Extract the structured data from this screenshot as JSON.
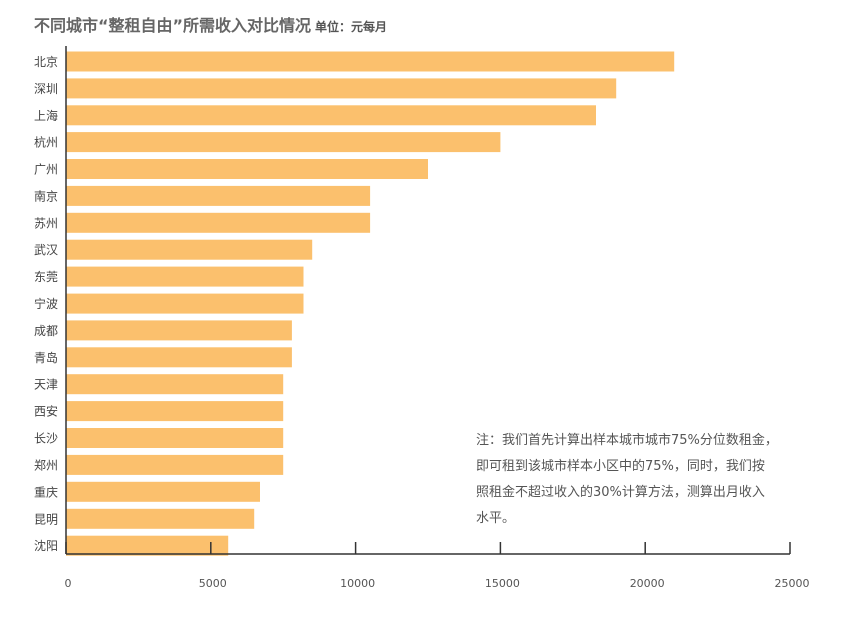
{
  "chart_data": {
    "type": "bar",
    "orientation": "horizontal",
    "title": "不同城市“整租自由”所需收入对比情况",
    "unit": "单位：元每月",
    "categories": [
      "北京",
      "深圳",
      "上海",
      "杭州",
      "广州",
      "南京",
      "苏州",
      "武汉",
      "东莞",
      "宁波",
      "成都",
      "青岛",
      "天津",
      "西安",
      "长沙",
      "郑州",
      "重庆",
      "昆明",
      "沈阳"
    ],
    "values": [
      21000,
      19000,
      18300,
      15000,
      12500,
      10500,
      10500,
      8500,
      8200,
      8200,
      7800,
      7800,
      7500,
      7500,
      7500,
      7500,
      6700,
      6500,
      5600
    ],
    "xlim": [
      0,
      25000
    ],
    "xticks": [
      "0",
      "5000",
      "10000",
      "15000",
      "20000",
      "25000"
    ],
    "bar_color": "#fbc06d",
    "axis_color": "#333333",
    "note": [
      "注：我们首先计算出样本城市城市75%分位数租金，",
      "即可租到该城市样本小区中的75%，同时，我们按",
      "照租金不超过收入的30%计算方法，测算出月收入",
      "水平。"
    ]
  }
}
